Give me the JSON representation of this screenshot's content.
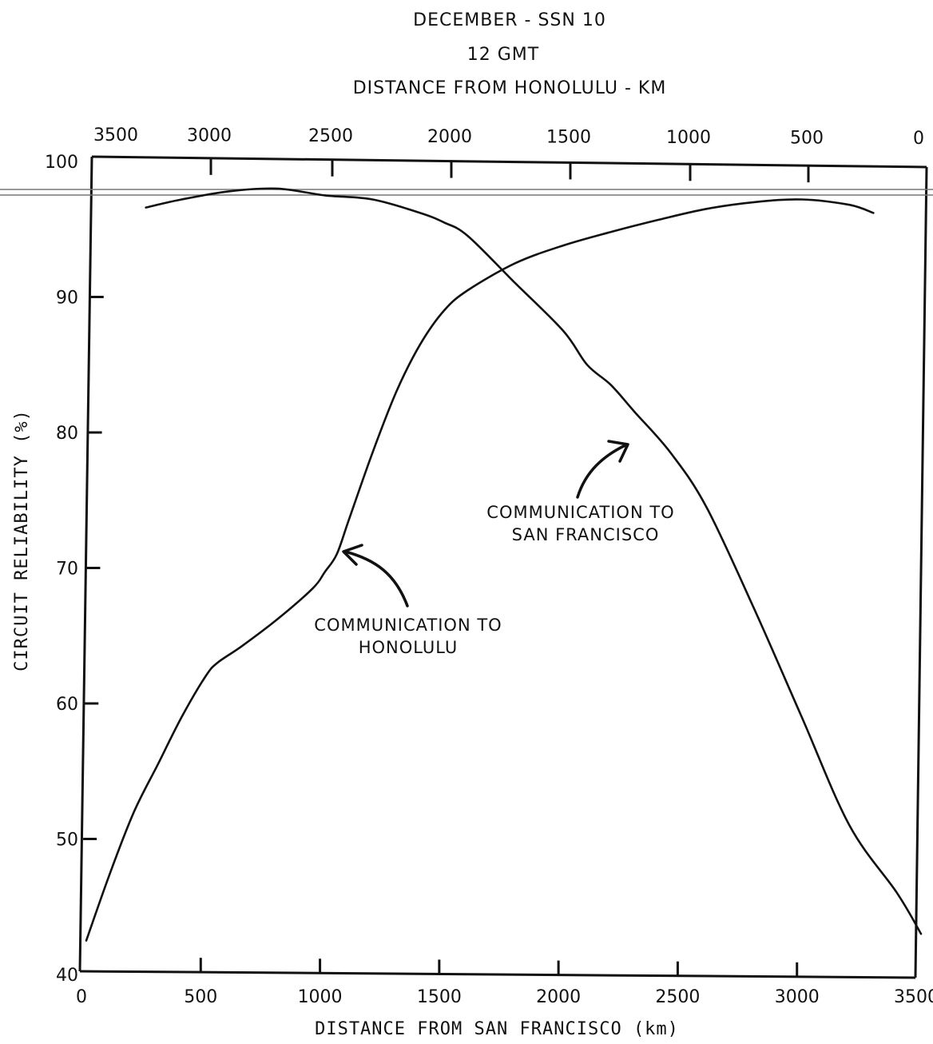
{
  "chart_data": {
    "type": "line",
    "title_lines": [
      "DECEMBER - SSN 10",
      "12 GMT",
      "DISTANCE FROM HONOLULU - KM"
    ],
    "xlabel": "DISTANCE FROM SAN FRANCISCO (km)",
    "ylabel": "CIRCUIT RELIABILITY (%)",
    "xlim": [
      0,
      3500
    ],
    "ylim": [
      40,
      100
    ],
    "x_ticks": [
      "0",
      "500",
      "1000",
      "1500",
      "2000",
      "2500",
      "3000",
      "3500"
    ],
    "y_ticks": [
      "40",
      "50",
      "60",
      "70",
      "80",
      "90",
      "100"
    ],
    "top_axis": {
      "label": "DISTANCE FROM HONOLULU - KM",
      "ticks": [
        "3500",
        "3000",
        "2500",
        "2000",
        "1500",
        "1000",
        "500",
        "0"
      ]
    },
    "series": [
      {
        "name": "COMMUNICATION TO HONOLULU",
        "x": [
          0,
          100,
          200,
          300,
          400,
          500,
          550,
          650,
          800,
          950,
          1000,
          1050,
          1100,
          1200,
          1300,
          1400,
          1500,
          1600,
          1800,
          2000,
          2200,
          2400,
          2600,
          2800,
          3000,
          3200,
          3300
        ],
        "y": [
          42.5,
          47.5,
          52,
          55.5,
          59,
          62,
          63,
          64.2,
          66.2,
          68.5,
          69.7,
          71,
          73.5,
          78.5,
          83,
          86.5,
          89,
          90.5,
          92.5,
          93.8,
          94.8,
          95.7,
          96.5,
          97,
          97.2,
          96.8,
          96.2
        ]
      },
      {
        "name": "COMMUNICATION TO SAN FRANCISCO",
        "x": [
          250,
          400,
          600,
          800,
          1000,
          1200,
          1400,
          1500,
          1600,
          1800,
          2000,
          2100,
          2200,
          2300,
          2450,
          2600,
          2800,
          3000,
          3200,
          3400,
          3500
        ],
        "y": [
          96.6,
          97.2,
          97.8,
          98,
          97.5,
          97.2,
          96.2,
          95.5,
          94.5,
          91,
          87.5,
          85,
          83.5,
          81.5,
          78.5,
          74.5,
          67,
          59,
          51,
          46,
          43
        ]
      }
    ],
    "annotations": [
      {
        "text_lines": [
          "COMMUNICATION TO",
          "HONOLULU"
        ],
        "series": "COMMUNICATION TO HONOLULU"
      },
      {
        "text_lines": [
          "COMMUNICATION TO",
          "SAN FRANCISCO"
        ],
        "series": "COMMUNICATION TO SAN FRANCISCO"
      }
    ],
    "grid": false,
    "legend": "none"
  }
}
